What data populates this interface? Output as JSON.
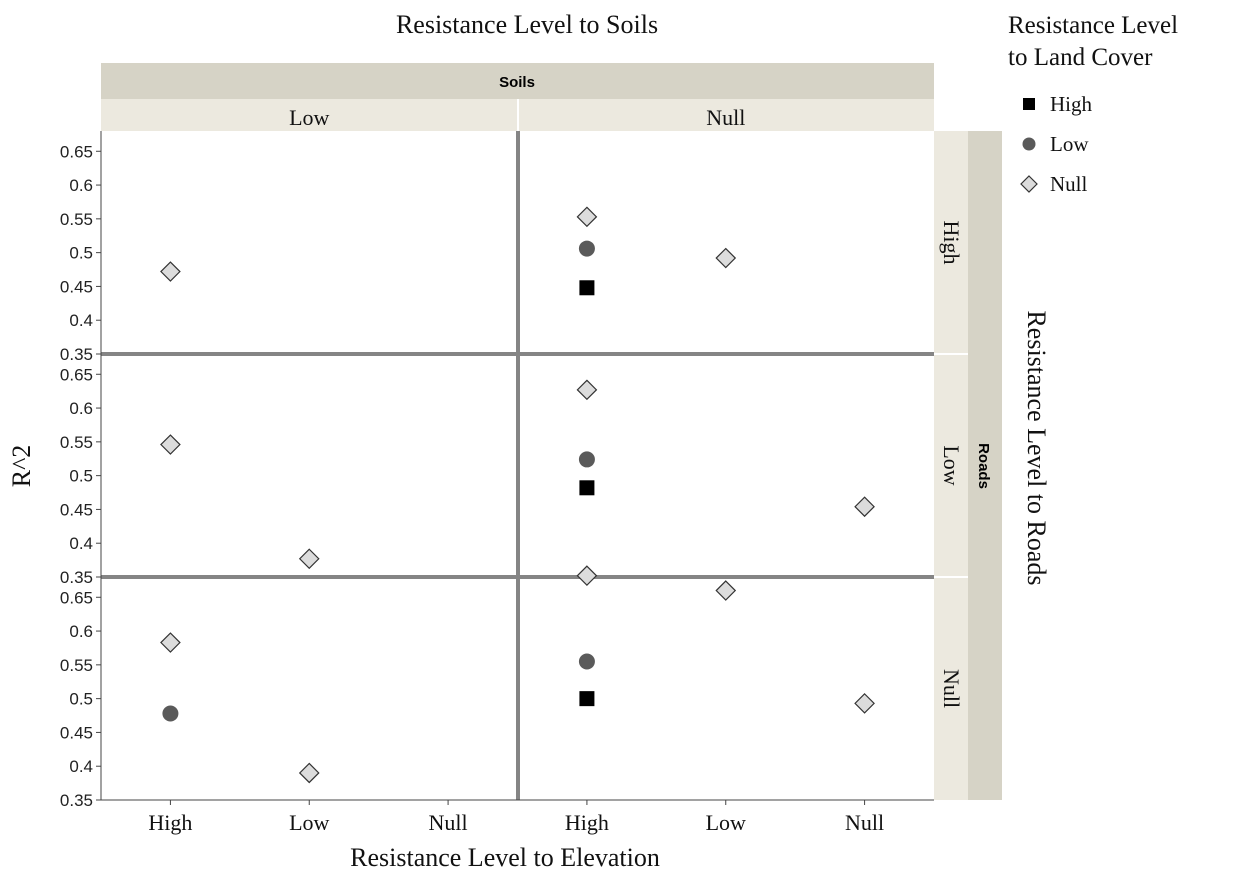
{
  "chart_data": {
    "type": "scatter",
    "title": "Resistance Level to Soils",
    "xlabel": "Resistance Level to Elevation",
    "ylabel": "R^2",
    "right_label": "Resistance Level to Roads",
    "ylim": [
      0.35,
      0.68
    ],
    "y_ticks": [
      "0.65",
      "0.6",
      "0.55",
      "0.5",
      "0.45",
      "0.4",
      "0.35"
    ],
    "x_categories": [
      "High",
      "Low",
      "Null"
    ],
    "grid": false,
    "facet_top": {
      "title": "Soils",
      "levels": [
        "Low",
        "Null"
      ]
    },
    "facet_right": {
      "title": "Roads",
      "levels": [
        "High",
        "Low",
        "Null"
      ]
    },
    "legend": {
      "title": "Resistance Level to Land Cover",
      "title_lines": [
        "Resistance Level",
        "to Land Cover"
      ],
      "placement": "top-right",
      "entries": [
        {
          "label": "High",
          "marker": "square",
          "color": "#000000"
        },
        {
          "label": "Low",
          "marker": "circle",
          "color": "#5a5a5a"
        },
        {
          "label": "Null",
          "marker": "diamond",
          "color": "#dcdcdc"
        }
      ]
    },
    "points": [
      {
        "soils": "Low",
        "roads": "High",
        "elevation": "High",
        "land_cover": "Null",
        "y": 0.472
      },
      {
        "soils": "Null",
        "roads": "High",
        "elevation": "High",
        "land_cover": "Null",
        "y": 0.553
      },
      {
        "soils": "Null",
        "roads": "High",
        "elevation": "High",
        "land_cover": "Low",
        "y": 0.506
      },
      {
        "soils": "Null",
        "roads": "High",
        "elevation": "High",
        "land_cover": "High",
        "y": 0.448
      },
      {
        "soils": "Null",
        "roads": "High",
        "elevation": "Low",
        "land_cover": "Null",
        "y": 0.492
      },
      {
        "soils": "Low",
        "roads": "Low",
        "elevation": "High",
        "land_cover": "Null",
        "y": 0.546
      },
      {
        "soils": "Low",
        "roads": "Low",
        "elevation": "Low",
        "land_cover": "Null",
        "y": 0.377
      },
      {
        "soils": "Null",
        "roads": "Low",
        "elevation": "High",
        "land_cover": "Null",
        "y": 0.627
      },
      {
        "soils": "Null",
        "roads": "Low",
        "elevation": "High",
        "land_cover": "Low",
        "y": 0.524
      },
      {
        "soils": "Null",
        "roads": "Low",
        "elevation": "High",
        "land_cover": "High",
        "y": 0.482
      },
      {
        "soils": "Null",
        "roads": "Low",
        "elevation": "Null",
        "land_cover": "Null",
        "y": 0.454
      },
      {
        "soils": "Low",
        "roads": "Null",
        "elevation": "High",
        "land_cover": "Null",
        "y": 0.583
      },
      {
        "soils": "Low",
        "roads": "Null",
        "elevation": "High",
        "land_cover": "Low",
        "y": 0.478
      },
      {
        "soils": "Low",
        "roads": "Null",
        "elevation": "Low",
        "land_cover": "Null",
        "y": 0.39
      },
      {
        "soils": "Null",
        "roads": "Null",
        "elevation": "High",
        "land_cover": "Null",
        "y": 0.682
      },
      {
        "soils": "Null",
        "roads": "Null",
        "elevation": "High",
        "land_cover": "Low",
        "y": 0.555
      },
      {
        "soils": "Null",
        "roads": "Null",
        "elevation": "High",
        "land_cover": "High",
        "y": 0.5
      },
      {
        "soils": "Null",
        "roads": "Null",
        "elevation": "Low",
        "land_cover": "Null",
        "y": 0.66
      },
      {
        "soils": "Null",
        "roads": "Null",
        "elevation": "Null",
        "land_cover": "Null",
        "y": 0.493
      }
    ]
  }
}
